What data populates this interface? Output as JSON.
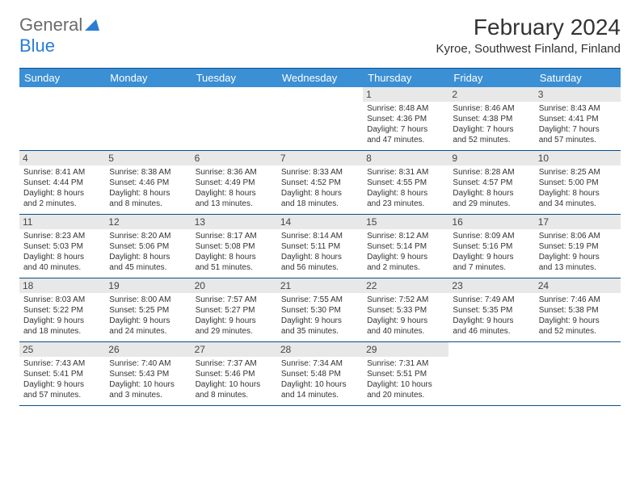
{
  "logo": {
    "word1": "General",
    "word2": "Blue"
  },
  "header": {
    "month_title": "February 2024",
    "location": "Kyroe, Southwest Finland, Finland"
  },
  "colors": {
    "header_bg": "#3b8fd4",
    "header_border": "#0b4d8a",
    "daynum_bg": "#e8e8e8",
    "logo_blue": "#2b7cd3"
  },
  "weekdays": [
    "Sunday",
    "Monday",
    "Tuesday",
    "Wednesday",
    "Thursday",
    "Friday",
    "Saturday"
  ],
  "weeks": [
    [
      null,
      null,
      null,
      null,
      {
        "n": "1",
        "sunrise": "Sunrise: 8:48 AM",
        "sunset": "Sunset: 4:36 PM",
        "day1": "Daylight: 7 hours",
        "day2": "and 47 minutes."
      },
      {
        "n": "2",
        "sunrise": "Sunrise: 8:46 AM",
        "sunset": "Sunset: 4:38 PM",
        "day1": "Daylight: 7 hours",
        "day2": "and 52 minutes."
      },
      {
        "n": "3",
        "sunrise": "Sunrise: 8:43 AM",
        "sunset": "Sunset: 4:41 PM",
        "day1": "Daylight: 7 hours",
        "day2": "and 57 minutes."
      }
    ],
    [
      {
        "n": "4",
        "sunrise": "Sunrise: 8:41 AM",
        "sunset": "Sunset: 4:44 PM",
        "day1": "Daylight: 8 hours",
        "day2": "and 2 minutes."
      },
      {
        "n": "5",
        "sunrise": "Sunrise: 8:38 AM",
        "sunset": "Sunset: 4:46 PM",
        "day1": "Daylight: 8 hours",
        "day2": "and 8 minutes."
      },
      {
        "n": "6",
        "sunrise": "Sunrise: 8:36 AM",
        "sunset": "Sunset: 4:49 PM",
        "day1": "Daylight: 8 hours",
        "day2": "and 13 minutes."
      },
      {
        "n": "7",
        "sunrise": "Sunrise: 8:33 AM",
        "sunset": "Sunset: 4:52 PM",
        "day1": "Daylight: 8 hours",
        "day2": "and 18 minutes."
      },
      {
        "n": "8",
        "sunrise": "Sunrise: 8:31 AM",
        "sunset": "Sunset: 4:55 PM",
        "day1": "Daylight: 8 hours",
        "day2": "and 23 minutes."
      },
      {
        "n": "9",
        "sunrise": "Sunrise: 8:28 AM",
        "sunset": "Sunset: 4:57 PM",
        "day1": "Daylight: 8 hours",
        "day2": "and 29 minutes."
      },
      {
        "n": "10",
        "sunrise": "Sunrise: 8:25 AM",
        "sunset": "Sunset: 5:00 PM",
        "day1": "Daylight: 8 hours",
        "day2": "and 34 minutes."
      }
    ],
    [
      {
        "n": "11",
        "sunrise": "Sunrise: 8:23 AM",
        "sunset": "Sunset: 5:03 PM",
        "day1": "Daylight: 8 hours",
        "day2": "and 40 minutes."
      },
      {
        "n": "12",
        "sunrise": "Sunrise: 8:20 AM",
        "sunset": "Sunset: 5:06 PM",
        "day1": "Daylight: 8 hours",
        "day2": "and 45 minutes."
      },
      {
        "n": "13",
        "sunrise": "Sunrise: 8:17 AM",
        "sunset": "Sunset: 5:08 PM",
        "day1": "Daylight: 8 hours",
        "day2": "and 51 minutes."
      },
      {
        "n": "14",
        "sunrise": "Sunrise: 8:14 AM",
        "sunset": "Sunset: 5:11 PM",
        "day1": "Daylight: 8 hours",
        "day2": "and 56 minutes."
      },
      {
        "n": "15",
        "sunrise": "Sunrise: 8:12 AM",
        "sunset": "Sunset: 5:14 PM",
        "day1": "Daylight: 9 hours",
        "day2": "and 2 minutes."
      },
      {
        "n": "16",
        "sunrise": "Sunrise: 8:09 AM",
        "sunset": "Sunset: 5:16 PM",
        "day1": "Daylight: 9 hours",
        "day2": "and 7 minutes."
      },
      {
        "n": "17",
        "sunrise": "Sunrise: 8:06 AM",
        "sunset": "Sunset: 5:19 PM",
        "day1": "Daylight: 9 hours",
        "day2": "and 13 minutes."
      }
    ],
    [
      {
        "n": "18",
        "sunrise": "Sunrise: 8:03 AM",
        "sunset": "Sunset: 5:22 PM",
        "day1": "Daylight: 9 hours",
        "day2": "and 18 minutes."
      },
      {
        "n": "19",
        "sunrise": "Sunrise: 8:00 AM",
        "sunset": "Sunset: 5:25 PM",
        "day1": "Daylight: 9 hours",
        "day2": "and 24 minutes."
      },
      {
        "n": "20",
        "sunrise": "Sunrise: 7:57 AM",
        "sunset": "Sunset: 5:27 PM",
        "day1": "Daylight: 9 hours",
        "day2": "and 29 minutes."
      },
      {
        "n": "21",
        "sunrise": "Sunrise: 7:55 AM",
        "sunset": "Sunset: 5:30 PM",
        "day1": "Daylight: 9 hours",
        "day2": "and 35 minutes."
      },
      {
        "n": "22",
        "sunrise": "Sunrise: 7:52 AM",
        "sunset": "Sunset: 5:33 PM",
        "day1": "Daylight: 9 hours",
        "day2": "and 40 minutes."
      },
      {
        "n": "23",
        "sunrise": "Sunrise: 7:49 AM",
        "sunset": "Sunset: 5:35 PM",
        "day1": "Daylight: 9 hours",
        "day2": "and 46 minutes."
      },
      {
        "n": "24",
        "sunrise": "Sunrise: 7:46 AM",
        "sunset": "Sunset: 5:38 PM",
        "day1": "Daylight: 9 hours",
        "day2": "and 52 minutes."
      }
    ],
    [
      {
        "n": "25",
        "sunrise": "Sunrise: 7:43 AM",
        "sunset": "Sunset: 5:41 PM",
        "day1": "Daylight: 9 hours",
        "day2": "and 57 minutes."
      },
      {
        "n": "26",
        "sunrise": "Sunrise: 7:40 AM",
        "sunset": "Sunset: 5:43 PM",
        "day1": "Daylight: 10 hours",
        "day2": "and 3 minutes."
      },
      {
        "n": "27",
        "sunrise": "Sunrise: 7:37 AM",
        "sunset": "Sunset: 5:46 PM",
        "day1": "Daylight: 10 hours",
        "day2": "and 8 minutes."
      },
      {
        "n": "28",
        "sunrise": "Sunrise: 7:34 AM",
        "sunset": "Sunset: 5:48 PM",
        "day1": "Daylight: 10 hours",
        "day2": "and 14 minutes."
      },
      {
        "n": "29",
        "sunrise": "Sunrise: 7:31 AM",
        "sunset": "Sunset: 5:51 PM",
        "day1": "Daylight: 10 hours",
        "day2": "and 20 minutes."
      },
      null,
      null
    ]
  ]
}
